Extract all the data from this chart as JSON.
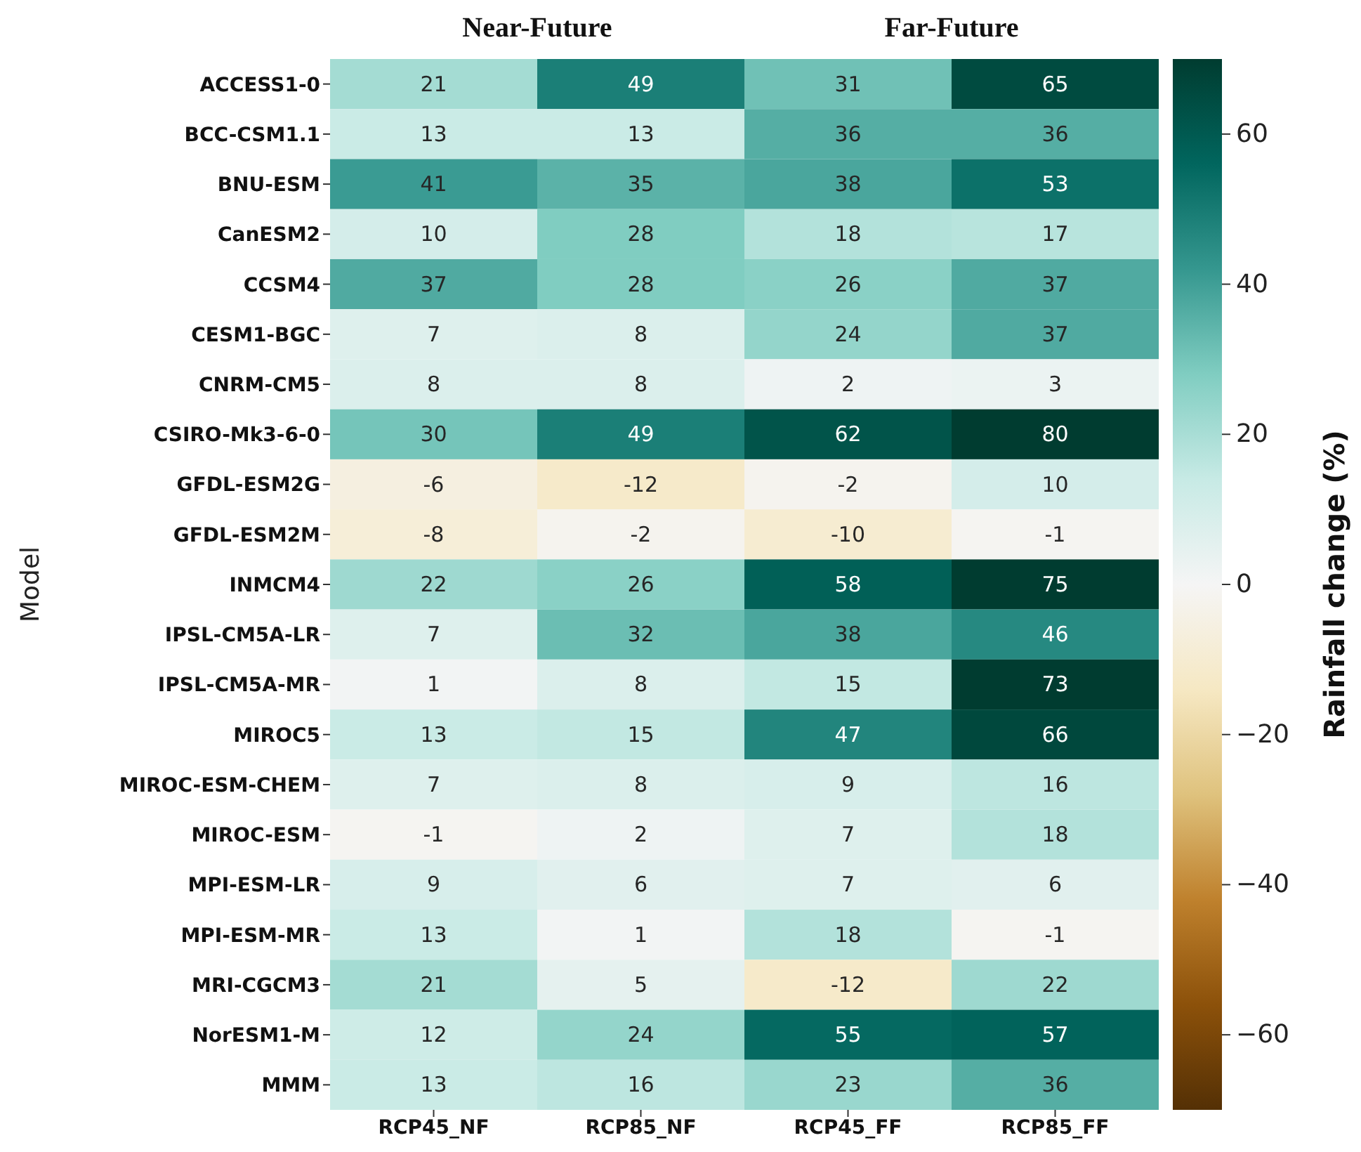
{
  "chart_data": {
    "type": "heatmap",
    "ylabel": "Model",
    "clabel": "Rainfall change (%)",
    "annotations": [
      "Near-Future",
      "Far-Future"
    ],
    "categories": [
      "RCP45_NF",
      "RCP85_NF",
      "RCP45_FF",
      "RCP85_FF"
    ],
    "y_categories": [
      "ACCESS1-0",
      "BCC-CSM1.1",
      "BNU-ESM",
      "CanESM2",
      "CCSM4",
      "CESM1-BGC",
      "CNRM-CM5",
      "CSIRO-Mk3-6-0",
      "GFDL-ESM2G",
      "GFDL-ESM2M",
      "INMCM4",
      "IPSL-CM5A-LR",
      "IPSL-CM5A-MR",
      "MIROC5",
      "MIROC-ESM-CHEM",
      "MIROC-ESM",
      "MPI-ESM-LR",
      "MPI-ESM-MR",
      "MRI-CGCM3",
      "NorESM1-M",
      "MMM"
    ],
    "cells": [
      [
        21,
        49,
        31,
        65
      ],
      [
        13,
        13,
        36,
        36
      ],
      [
        41,
        35,
        38,
        53
      ],
      [
        10,
        28,
        18,
        17
      ],
      [
        37,
        28,
        26,
        37
      ],
      [
        7,
        8,
        24,
        37
      ],
      [
        8,
        8,
        2,
        3
      ],
      [
        30,
        49,
        62,
        80
      ],
      [
        -6,
        -12,
        -2,
        10
      ],
      [
        -8,
        -2,
        -10,
        -1
      ],
      [
        22,
        26,
        58,
        75
      ],
      [
        7,
        32,
        38,
        46
      ],
      [
        1,
        8,
        15,
        73
      ],
      [
        13,
        15,
        47,
        66
      ],
      [
        7,
        8,
        9,
        16
      ],
      [
        -1,
        2,
        7,
        18
      ],
      [
        9,
        6,
        7,
        6
      ],
      [
        13,
        1,
        18,
        -1
      ],
      [
        21,
        5,
        -12,
        22
      ],
      [
        12,
        24,
        55,
        57
      ],
      [
        13,
        16,
        23,
        36
      ]
    ],
    "clim": [
      -70,
      70
    ],
    "cticks": [
      -60,
      -40,
      -20,
      0,
      20,
      40,
      60
    ],
    "data_labels": true
  }
}
